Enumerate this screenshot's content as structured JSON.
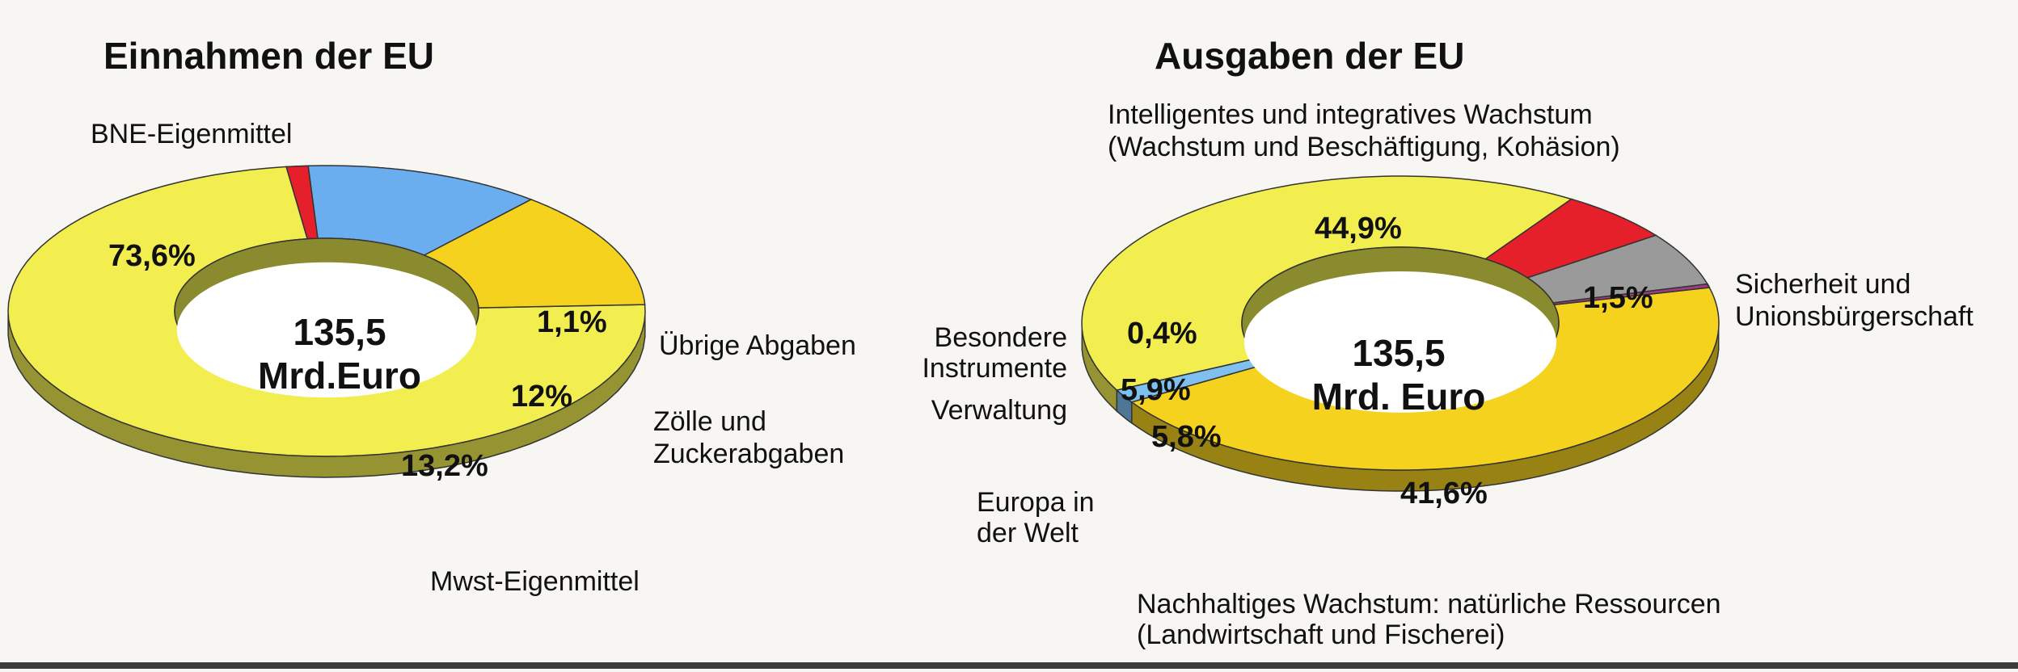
{
  "chart_data": [
    {
      "type": "pie",
      "title": "Einnahmen der EU",
      "center_value": "135,5",
      "center_unit": "Mrd.Euro",
      "slices": [
        {
          "label": "BNE-Eigenmittel",
          "value": 73.6,
          "value_label": "73,6%",
          "color": "#f2ee50"
        },
        {
          "label": "Übrige Abgaben",
          "value": 1.1,
          "value_label": "1,1%",
          "color": "#e5202a"
        },
        {
          "label": "Zölle und Zuckerabgaben",
          "value": 12.0,
          "value_label": "12%",
          "color": "#6aaef0"
        },
        {
          "label": "Mwst-Eigenmittel",
          "value": 13.2,
          "value_label": "13,2%",
          "color": "#f5d21e"
        }
      ]
    },
    {
      "type": "pie",
      "title": "Ausgaben der EU",
      "center_value": "135,5",
      "center_unit": "Mrd. Euro",
      "slices": [
        {
          "label": "Intelligentes und integratives Wachstum (Wachstum und Beschäftigung, Kohäsion)",
          "value": 44.9,
          "value_label": "44,9%",
          "color": "#f5d21e"
        },
        {
          "label": "Sicherheit und Unionsbürgerschaft",
          "value": 1.5,
          "value_label": "1,5%",
          "color": "#7ec0f0"
        },
        {
          "label": "Nachhaltiges Wachstum: natürliche Ressourcen (Landwirtschaft und Fischerei)",
          "value": 41.6,
          "value_label": "41,6%",
          "color": "#f2ee50"
        },
        {
          "label": "Europa in der Welt",
          "value": 5.8,
          "value_label": "5,8%",
          "color": "#e5202a"
        },
        {
          "label": "Verwaltung",
          "value": 5.9,
          "value_label": "5,9%",
          "color": "#9a9a9a"
        },
        {
          "label": "Besondere Instrumente",
          "value": 0.4,
          "value_label": "0,4%",
          "color": "#a23a86"
        }
      ]
    }
  ],
  "left": {
    "title": "Einnahmen der EU",
    "center_line1": "135,5",
    "center_line2": "Mrd.Euro",
    "labels": {
      "bne": "BNE-Eigenmittel",
      "uebrige": "Übrige Abgaben",
      "zoelle_1": "Zölle und",
      "zoelle_2": "Zuckerabgaben",
      "mwst": "Mwst-Eigenmittel"
    },
    "pct": {
      "bne": "73,6%",
      "uebrige": "1,1%",
      "zoelle": "12%",
      "mwst": "13,2%"
    }
  },
  "right": {
    "title": "Ausgaben der EU",
    "center_line1": "135,5",
    "center_line2": "Mrd. Euro",
    "labels": {
      "intelligent_1": "Intelligentes und integratives Wachstum",
      "intelligent_2": "(Wachstum und Beschäftigung, Kohäsion)",
      "sicherheit_1": "Sicherheit und",
      "sicherheit_2": "Unionsbürgerschaft",
      "besondere_1": "Besondere",
      "besondere_2": "Instrumente",
      "verwaltung": "Verwaltung",
      "europa_1": "Europa in",
      "europa_2": "der Welt",
      "nachhaltig_1": "Nachhaltiges Wachstum: natürliche Ressourcen",
      "nachhaltig_2": "(Landwirtschaft und Fischerei)"
    },
    "pct": {
      "intelligent": "44,9%",
      "sicherheit": "1,5%",
      "nachhaltig": "41,6%",
      "europa": "5,8%",
      "verwaltung": "5,9%",
      "besondere": "0,4%"
    }
  }
}
